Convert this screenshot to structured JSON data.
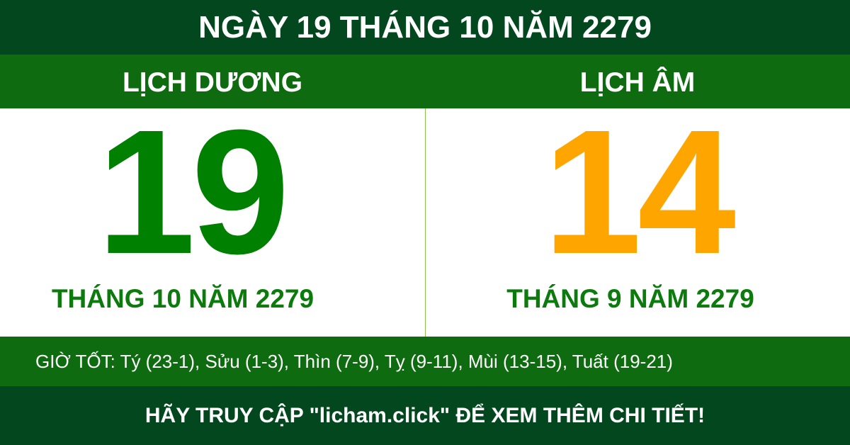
{
  "title": "NGÀY 19 THÁNG 10 NĂM 2279",
  "solar": {
    "label": "LỊCH DƯƠNG",
    "day": "19",
    "month_year": "THÁNG 10 NĂM 2279",
    "color": "#008000"
  },
  "lunar": {
    "label": "LỊCH ÂM",
    "day": "14",
    "month_year": "THÁNG 9 NĂM 2279",
    "color": "#ffa500"
  },
  "good_hours": "GIỜ TỐT: Tý (23-1), Sửu (1-3), Thìn (7-9), Tỵ (9-11), Mùi (13-15), Tuất (19-21)",
  "footer": "HÃY TRUY CẬP \"licham.click\" ĐỂ XEM THÊM CHI TIẾT!",
  "colors": {
    "dark_green": "#03471f",
    "green": "#0f6b10"
  }
}
